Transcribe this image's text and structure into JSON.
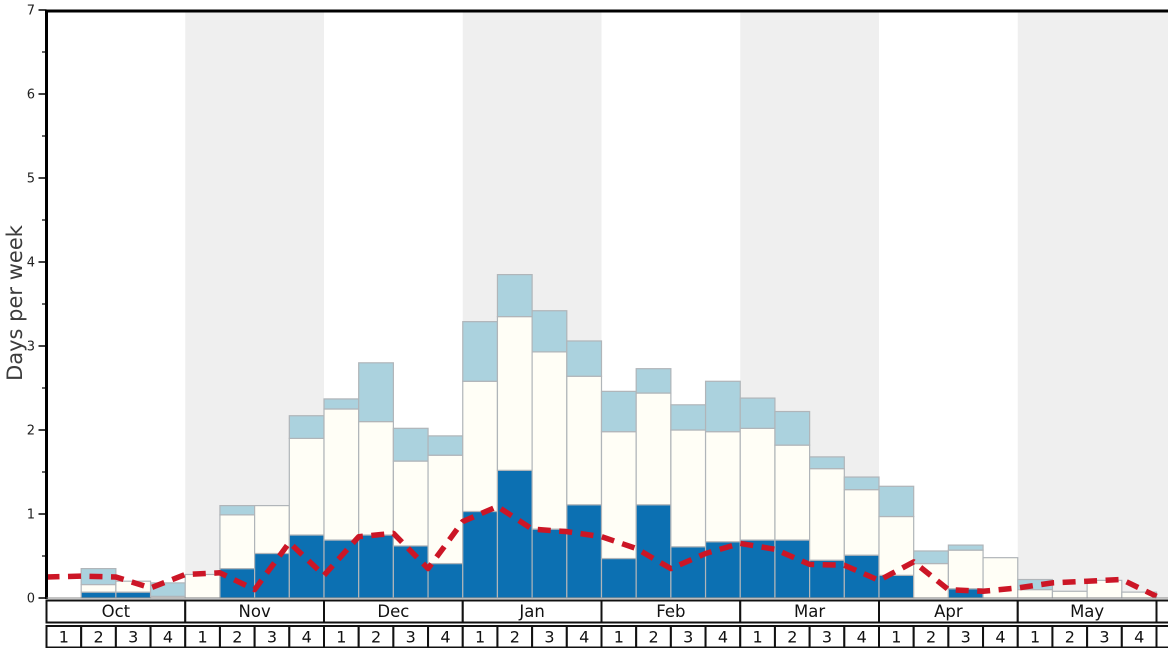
{
  "y_axis": {
    "label": "Days per week",
    "tick_labels": [
      "0",
      "1",
      "2",
      "3",
      "4",
      "5",
      "6",
      "7"
    ],
    "min": 0,
    "max": 7,
    "minor_tick_step": 0.5
  },
  "x_axis": {
    "months": [
      "Oct",
      "Nov",
      "Dec",
      "Jan",
      "Feb",
      "Mar",
      "Apr",
      "May"
    ],
    "weeks_per_month": 4,
    "week_labels": [
      "1",
      "2",
      "3",
      "4"
    ]
  },
  "colors": {
    "dark_blue": "#0c70b2",
    "white_bar": "#fffef6",
    "light_blue": "#abd2de",
    "red_line": "#cc1626",
    "band_gray": "#efefef",
    "bar_border": "#b0b5b9",
    "axis_black": "#000000",
    "baseline_gray": "#8a8a8a",
    "table_border": "#111111",
    "label_gray": "#3c3c3c"
  },
  "chart_data": {
    "type": "bar",
    "stacked": true,
    "title": "",
    "xlabel": "",
    "ylabel": "Days per week",
    "ylim": [
      0,
      7
    ],
    "grid": false,
    "legend": "none",
    "shaded_months": [
      "Nov",
      "Jan",
      "Mar",
      "May"
    ],
    "categories": [
      "Oct 1",
      "Oct 2",
      "Oct 3",
      "Oct 4",
      "Nov 1",
      "Nov 2",
      "Nov 3",
      "Nov 4",
      "Dec 1",
      "Dec 2",
      "Dec 3",
      "Dec 4",
      "Jan 1",
      "Jan 2",
      "Jan 3",
      "Jan 4",
      "Feb 1",
      "Feb 2",
      "Feb 3",
      "Feb 4",
      "Mar 1",
      "Mar 2",
      "Mar 3",
      "Mar 4",
      "Apr 1",
      "Apr 2",
      "Apr 3",
      "Apr 4",
      "May 1",
      "May 2",
      "May 3",
      "May 4"
    ],
    "series": [
      {
        "name": "dark-blue-segment",
        "color_key": "dark_blue",
        "values": [
          0,
          0.07,
          0.07,
          0,
          0,
          0.35,
          0.53,
          0.75,
          0.69,
          0.75,
          0.62,
          0.41,
          1.03,
          1.52,
          0.82,
          1.11,
          0.47,
          1.11,
          0.61,
          0.67,
          0.69,
          0.69,
          0.45,
          0.51,
          0.27,
          0,
          0.11,
          0,
          0,
          0,
          0,
          0
        ]
      },
      {
        "name": "white-segment",
        "color_key": "white_bar",
        "values": [
          0,
          0.09,
          0.13,
          0.02,
          0.28,
          0.64,
          0.57,
          1.15,
          1.56,
          1.35,
          1.01,
          1.29,
          1.55,
          1.83,
          2.11,
          1.53,
          1.51,
          1.33,
          1.39,
          1.31,
          1.33,
          1.13,
          1.09,
          0.78,
          0.7,
          0.41,
          0.46,
          0.48,
          0.1,
          0.08,
          0.21,
          0.07
        ]
      },
      {
        "name": "light-blue-segment",
        "color_key": "light_blue",
        "values": [
          0,
          0.19,
          0,
          0.16,
          0,
          0.11,
          0,
          0.27,
          0.12,
          0.7,
          0.39,
          0.23,
          0.71,
          0.5,
          0.49,
          0.42,
          0.48,
          0.29,
          0.3,
          0.6,
          0.36,
          0.4,
          0.14,
          0.15,
          0.36,
          0.15,
          0.06,
          0,
          0.12,
          0,
          0,
          0
        ]
      }
    ],
    "average_line": {
      "name": "average-snowfall-line",
      "style": "dashed",
      "color_key": "red_line",
      "x_unit": "week_boundaries",
      "values": [
        0.25,
        0.26,
        0.25,
        0.12,
        0.28,
        0.3,
        0.1,
        0.66,
        0.27,
        0.73,
        0.77,
        0.35,
        0.91,
        1.09,
        0.82,
        0.79,
        0.73,
        0.59,
        0.35,
        0.53,
        0.65,
        0.58,
        0.4,
        0.39,
        0.21,
        0.43,
        0.1,
        0.08,
        0.12,
        0.18,
        0.2,
        0.22,
        0.02
      ]
    }
  }
}
